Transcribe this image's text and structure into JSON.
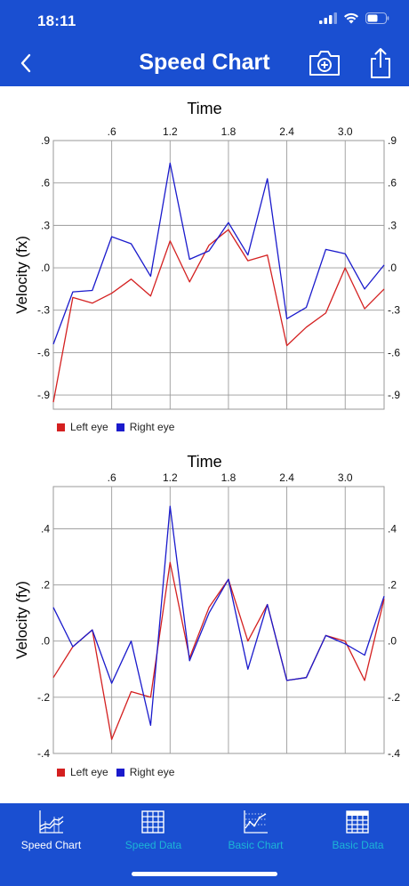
{
  "status_bar": {
    "time": "18:11"
  },
  "nav": {
    "title": "Speed Chart",
    "back_icon": "chevron-left-icon",
    "camera_icon": "camera-icon",
    "share_icon": "share-icon"
  },
  "colors": {
    "header_bg": "#1a4fd1",
    "left_eye": "#d42020",
    "right_eye": "#1a1acc",
    "tab_active": "#ffffff",
    "tab_inactive": "#1cb6d6"
  },
  "charts": [
    {
      "title": "Time",
      "ylabel": "Velocity (fx)",
      "legend": [
        {
          "label": "Left eye"
        },
        {
          "label": "Right eye"
        }
      ]
    },
    {
      "title": "Time",
      "ylabel": "Velocity (fy)",
      "legend": [
        {
          "label": "Left eye"
        },
        {
          "label": "Right eye"
        }
      ]
    }
  ],
  "chart_data": [
    {
      "type": "line",
      "title": "Time",
      "ylabel": "Velocity (fx)",
      "xlim": [
        0.0,
        3.4
      ],
      "ylim": [
        -1.0,
        0.9
      ],
      "xticks": [
        0.6,
        1.2,
        1.8,
        2.4,
        3.0
      ],
      "xtick_labels": [
        ".6",
        "1.2",
        "1.8",
        "2.4",
        "3.0"
      ],
      "yticks": [
        0.9,
        0.6,
        0.3,
        0.0,
        -0.3,
        -0.6,
        -0.9
      ],
      "ytick_labels": [
        ".9",
        ".6",
        ".3",
        ".0",
        "-.3",
        "-.6",
        "-.9"
      ],
      "x": [
        0.0,
        0.2,
        0.4,
        0.6,
        0.8,
        1.0,
        1.2,
        1.4,
        1.6,
        1.8,
        2.0,
        2.2,
        2.4,
        2.6,
        2.8,
        3.0,
        3.2,
        3.4
      ],
      "series": [
        {
          "name": "Left eye",
          "values": [
            -0.95,
            -0.21,
            -0.25,
            -0.18,
            -0.08,
            -0.2,
            0.19,
            -0.1,
            0.16,
            0.27,
            0.05,
            0.09,
            -0.55,
            -0.42,
            -0.32,
            0.0,
            -0.29,
            -0.15
          ]
        },
        {
          "name": "Right eye",
          "values": [
            -0.54,
            -0.17,
            -0.16,
            0.22,
            0.17,
            -0.06,
            0.74,
            0.06,
            0.12,
            0.32,
            0.09,
            0.63,
            -0.36,
            -0.28,
            0.13,
            0.1,
            -0.15,
            0.02
          ]
        }
      ],
      "grid": true,
      "legend_position": "bottom-left"
    },
    {
      "type": "line",
      "title": "Time",
      "ylabel": "Velocity (fy)",
      "xlim": [
        0.0,
        3.4
      ],
      "ylim": [
        -0.4,
        0.55
      ],
      "xticks": [
        0.6,
        1.2,
        1.8,
        2.4,
        3.0
      ],
      "xtick_labels": [
        ".6",
        "1.2",
        "1.8",
        "2.4",
        "3.0"
      ],
      "yticks": [
        0.4,
        0.2,
        0.0,
        -0.2,
        -0.4
      ],
      "ytick_labels": [
        ".4",
        ".2",
        ".0",
        "-.2",
        "-.4"
      ],
      "x": [
        0.0,
        0.2,
        0.4,
        0.6,
        0.8,
        1.0,
        1.2,
        1.4,
        1.6,
        1.8,
        2.0,
        2.2,
        2.4,
        2.6,
        2.8,
        3.0,
        3.2,
        3.4
      ],
      "series": [
        {
          "name": "Left eye",
          "values": [
            -0.13,
            -0.02,
            0.04,
            -0.35,
            -0.18,
            -0.2,
            0.28,
            -0.06,
            0.12,
            0.22,
            0.0,
            0.13,
            -0.14,
            -0.13,
            0.02,
            0.0,
            -0.14,
            0.15
          ]
        },
        {
          "name": "Right eye",
          "values": [
            0.12,
            -0.02,
            0.04,
            -0.15,
            0.0,
            -0.3,
            0.48,
            -0.07,
            0.1,
            0.22,
            -0.1,
            0.13,
            -0.14,
            -0.13,
            0.02,
            -0.01,
            -0.05,
            0.16
          ]
        }
      ],
      "grid": true,
      "legend_position": "bottom-left"
    }
  ],
  "tabs": [
    {
      "label": "Speed Chart",
      "icon": "speed-chart-icon",
      "active": true
    },
    {
      "label": "Speed Data",
      "icon": "grid-table-icon",
      "active": false
    },
    {
      "label": "Basic Chart",
      "icon": "basic-chart-icon",
      "active": false
    },
    {
      "label": "Basic Data",
      "icon": "grid-table-icon",
      "active": false
    }
  ]
}
